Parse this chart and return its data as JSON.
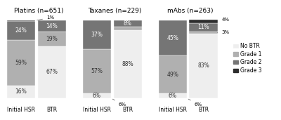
{
  "groups": [
    {
      "title": "Platins (n=651)",
      "initial_hsr": [
        16,
        59,
        24,
        1
      ],
      "btr": [
        67,
        19,
        14,
        0
      ],
      "initial_bottom_note": null,
      "btr_top_note": "1%"
    },
    {
      "title": "Taxanes (n=229)",
      "initial_hsr": [
        6,
        57,
        37,
        0
      ],
      "btr": [
        88,
        4,
        8,
        0
      ],
      "initial_bottom_note": "6%",
      "btr_top_note": null
    },
    {
      "title": "mAbs (n=263)",
      "initial_hsr": [
        6,
        49,
        45,
        0
      ],
      "btr": [
        83,
        3,
        11,
        4
      ],
      "initial_bottom_note": "6%",
      "btr_top_note": null
    }
  ],
  "colors": [
    "#eeeeee",
    "#b0b0b0",
    "#757575",
    "#2d2d2d"
  ],
  "legend_labels": [
    "No BTR",
    "Grade 1",
    "Grade 2",
    "Grade 3"
  ],
  "background_color": "#ffffff",
  "title_fontsize": 6.5,
  "label_fontsize": 5.5,
  "tick_fontsize": 5.5,
  "annot_fontsize": 5.0
}
